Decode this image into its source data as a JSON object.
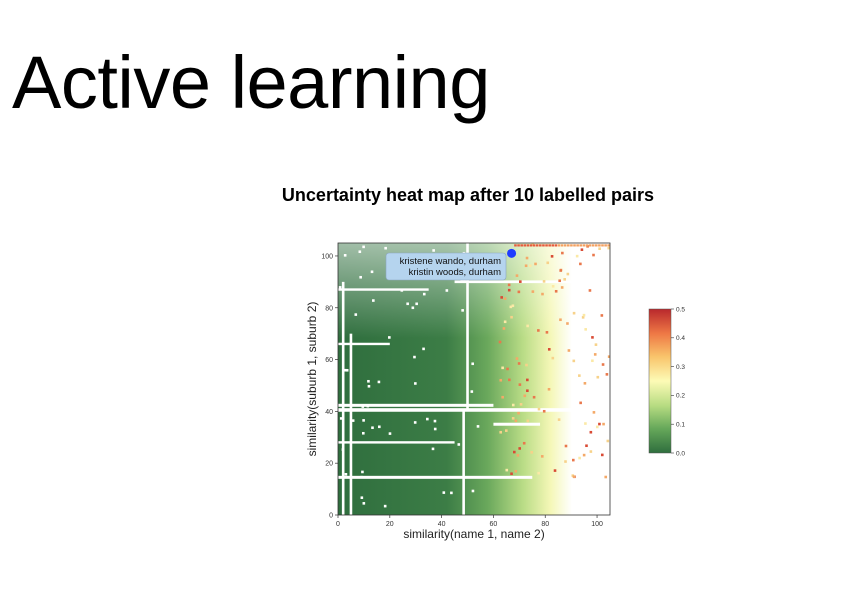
{
  "slide": {
    "title": "Active learning"
  },
  "chart_data": {
    "type": "heatmap",
    "title": "Uncertainty heat map after 10 labelled pairs",
    "xlabel": "similarity(name 1, name 2)",
    "ylabel": "similarity(suburb 1, suburb 2)",
    "xlim": [
      0,
      105
    ],
    "ylim": [
      0,
      105
    ],
    "x_ticks": [
      0,
      20,
      40,
      60,
      80,
      100
    ],
    "y_ticks": [
      0,
      20,
      40,
      60,
      80,
      100
    ],
    "colorbar": {
      "min": 0.0,
      "max": 0.5,
      "ticks": [
        0.0,
        0.1,
        0.2,
        0.3,
        0.4,
        0.5
      ],
      "colors": [
        "#2f6e3e",
        "#66a85a",
        "#b7dc82",
        "#fdfbb6",
        "#f9c46b",
        "#ee7845",
        "#b9282c"
      ]
    },
    "highlight_point": {
      "x": 67,
      "y": 101,
      "color": "#1f3cff",
      "label_lines": [
        "kristene wando, durham",
        "kristin woods, durham"
      ]
    },
    "grid": false
  }
}
